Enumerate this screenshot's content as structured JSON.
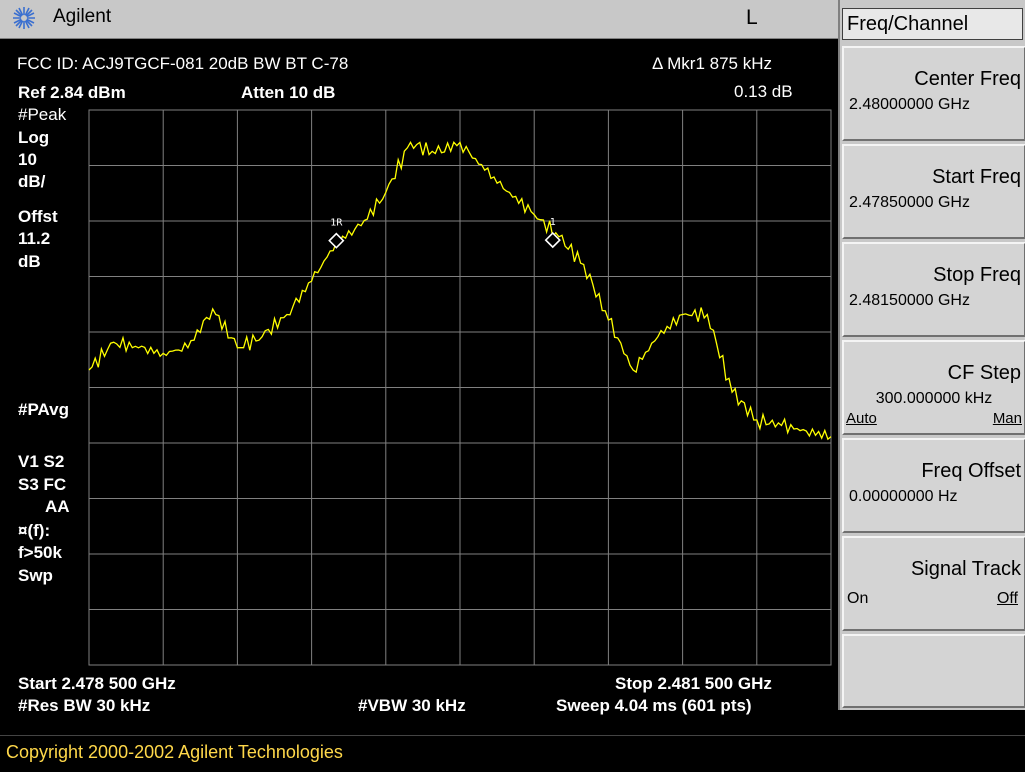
{
  "header": {
    "brand": "Agilent",
    "indicator": "L"
  },
  "screen": {
    "title": "FCC ID: ACJ9TGCF-081 20dB BW BT C-78",
    "marker_readout": "Δ Mkr1  875 kHz",
    "marker_delta": "0.13 dB",
    "ref_level": "Ref 2.84 dBm",
    "atten": "Atten 10 dB",
    "left_annotations": [
      "#Peak",
      "Log",
      "10",
      "dB/",
      "Offst",
      "11.2",
      "dB",
      "#PAvg",
      "V1   S2",
      "S3   FC",
      "AA",
      "¤(f):",
      "f>50k",
      "Swp"
    ],
    "start": "Start 2.478 500 GHz",
    "stop": "Stop 2.481 500 GHz",
    "res_bw": "#Res BW 30 kHz",
    "vbw": "#VBW 30 kHz",
    "sweep": "Sweep 4.04 ms (601 pts)",
    "markers": [
      {
        "label": "1R",
        "freq_ghz": 2.4795,
        "level_db": -20.7
      },
      {
        "label": "1",
        "freq_ghz": 2.480375,
        "level_db": -20.6
      }
    ]
  },
  "softkeys": {
    "menu_title": "Freq/Channel",
    "keys": [
      {
        "label": "Center Freq",
        "value": "2.48000000 GHz"
      },
      {
        "label": "Start Freq",
        "value": "2.47850000 GHz"
      },
      {
        "label": "Stop Freq",
        "value": "2.48150000 GHz"
      },
      {
        "label": "CF Step",
        "value": "300.000000 kHz",
        "option_a": "Auto",
        "option_b": "Man"
      },
      {
        "label": "Freq Offset",
        "value": "0.00000000  Hz"
      },
      {
        "label": "Signal Track",
        "option_a": "On",
        "option_b": "Off"
      }
    ]
  },
  "footer": {
    "copyright": "Copyright 2000-2002 Agilent Technologies"
  },
  "colors": {
    "trace": "#ffff00",
    "graticule": "#808080",
    "copyright": "#ffd84a",
    "panel": "#c8c8c8"
  },
  "chart_data": {
    "type": "line",
    "x_start_ghz": 2.4785,
    "x_stop_ghz": 2.4815,
    "y_ref_dbm": 2.84,
    "y_scale_db_per_div": 10,
    "y_divisions": 10,
    "series": [
      {
        "x": [
          2.4785,
          2.4786,
          2.4787,
          2.4788,
          2.4789,
          2.479,
          2.4791,
          2.4792,
          2.4793,
          2.4794,
          2.4795,
          2.4796,
          2.4797,
          2.4798,
          2.4799,
          2.48,
          2.4801,
          2.4802,
          2.4803,
          2.4804,
          2.4805,
          2.4806,
          2.4807,
          2.4808,
          2.4809,
          2.481,
          2.4811,
          2.4812,
          2.4813,
          2.4814,
          2.4815
        ],
        "values": [
          -44,
          -39,
          -40,
          -41,
          -40,
          -33,
          -40,
          -38,
          -34,
          -28,
          -21,
          -18,
          -12,
          -3,
          -5,
          -3,
          -8,
          -12,
          -16,
          -20,
          -25,
          -35,
          -44,
          -38,
          -34,
          -34,
          -48,
          -53,
          -54,
          -55,
          -56
        ]
      }
    ]
  }
}
